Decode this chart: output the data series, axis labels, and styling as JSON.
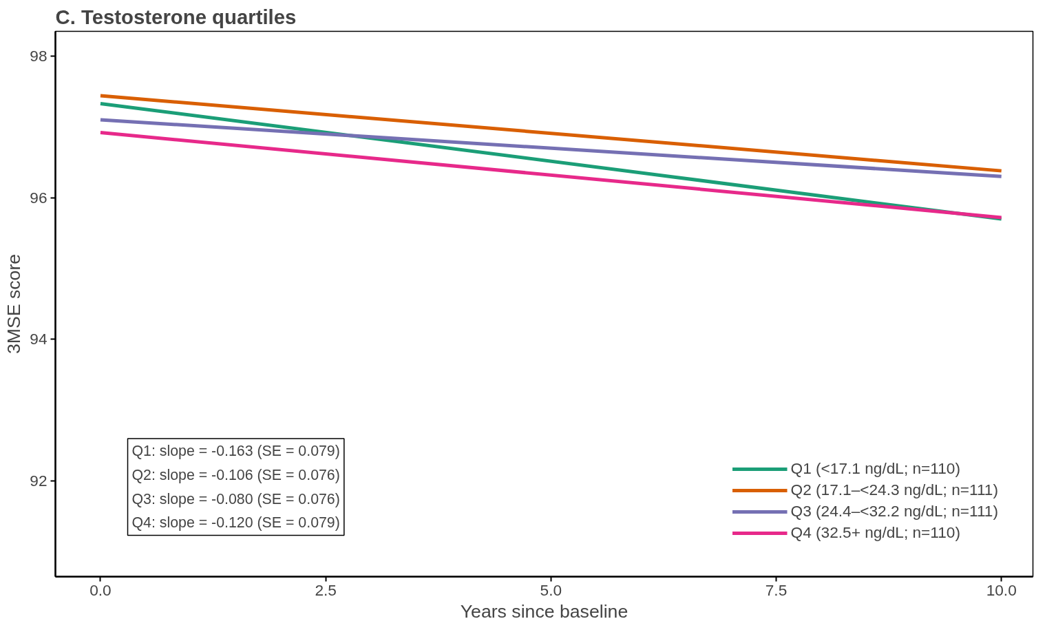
{
  "chart_data": {
    "type": "line",
    "title": "C. Testosterone quartiles",
    "xlabel": "Years since baseline",
    "ylabel": "3MSE score",
    "x": [
      0,
      10
    ],
    "series": [
      {
        "name": "Q1 (<17.1 ng/dL; n=110)",
        "color": "#1b9e77",
        "values": [
          97.33,
          95.7
        ]
      },
      {
        "name": "Q2 (17.1–<24.3 ng/dL; n=111)",
        "color": "#d95f02",
        "values": [
          97.44,
          96.38
        ]
      },
      {
        "name": "Q3 (24.4–<32.2 ng/dL; n=111)",
        "color": "#7570b3",
        "values": [
          97.1,
          96.3
        ]
      },
      {
        "name": "Q4 (32.5+ ng/dL; n=110)",
        "color": "#e7298a",
        "values": [
          96.92,
          95.72
        ]
      }
    ],
    "xlim": [
      -0.5,
      10.35
    ],
    "ylim": [
      90.65,
      98.35
    ],
    "xticks": [
      {
        "value": 0,
        "label": "0.0"
      },
      {
        "value": 2.5,
        "label": "2.5"
      },
      {
        "value": 5,
        "label": "5.0"
      },
      {
        "value": 7.5,
        "label": "7.5"
      },
      {
        "value": 10,
        "label": "10.0"
      }
    ],
    "yticks": [
      92,
      94,
      96,
      98
    ],
    "grid": false,
    "legend": "bottom right",
    "marker": "none",
    "line_style": "solid",
    "annotations": [
      "Q1: slope = -0.163 (SE = 0.079)\nQ2: slope = -0.106 (SE = 0.076)\nQ3: slope = -0.080 (SE = 0.076)\nQ4: slope = -0.120 (SE = 0.079)"
    ]
  }
}
